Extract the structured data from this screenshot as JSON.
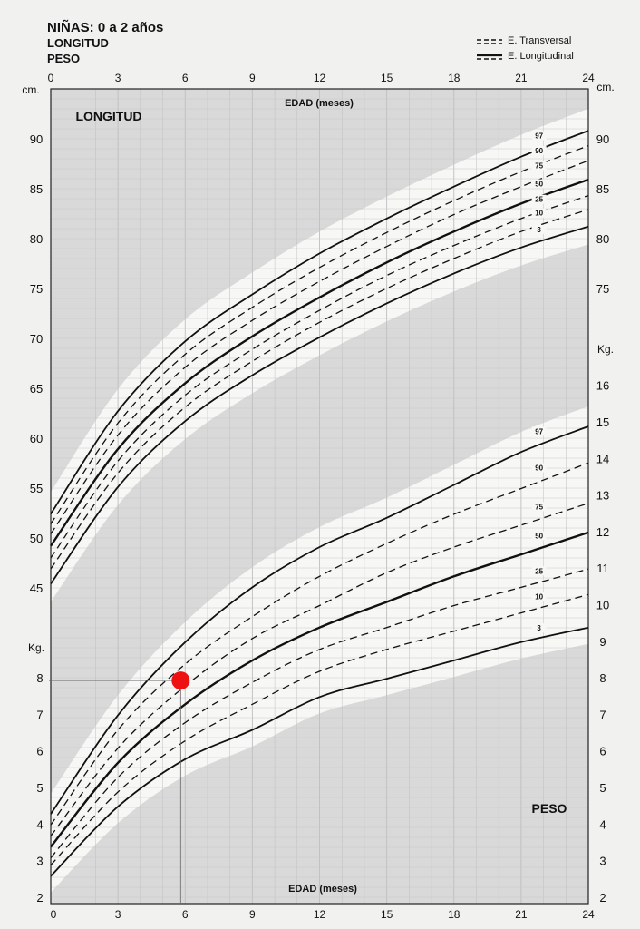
{
  "header": {
    "title": "NIÑAS: 0 a 2 años",
    "subtitle1": "LONGITUD",
    "subtitle2": "PESO"
  },
  "legend": {
    "transversal": "E. Transversal",
    "longitudinal": "E. Longitudinal"
  },
  "colors": {
    "background": "#f1f1ef",
    "plot_area": "#d9d9d9",
    "band": "#f7f7f5",
    "curve": "#111111",
    "marker": "#ee1111"
  },
  "chart_data": [
    {
      "type": "line",
      "panel": "LONGITUD",
      "title": "LONGITUD",
      "xlabel": "EDAD (meses)",
      "ylabel": "cm.",
      "x_ticks": [
        0,
        3,
        6,
        9,
        12,
        15,
        18,
        21,
        24
      ],
      "y_ticks_left": [
        45,
        50,
        55,
        60,
        65,
        70,
        75,
        80,
        85,
        90
      ],
      "y_ticks_right": [
        75,
        80,
        85,
        90
      ],
      "xlim": [
        0,
        24
      ],
      "ylim": [
        44,
        94
      ],
      "grid": true,
      "x": [
        0,
        3,
        6,
        9,
        12,
        15,
        18,
        21,
        24
      ],
      "series": [
        {
          "name": "97",
          "style": "solid",
          "values": [
            52.5,
            62.8,
            69.8,
            74.5,
            78.6,
            82.1,
            85.3,
            88.3,
            90.9
          ]
        },
        {
          "name": "90",
          "style": "dashed",
          "values": [
            51.5,
            61.6,
            68.5,
            73.2,
            77.2,
            80.7,
            83.9,
            86.8,
            89.4
          ]
        },
        {
          "name": "75",
          "style": "dashed",
          "values": [
            50.5,
            60.4,
            67.2,
            71.9,
            75.8,
            79.3,
            82.5,
            85.3,
            87.9
          ]
        },
        {
          "name": "50",
          "style": "solid",
          "values": [
            49.3,
            59.0,
            65.6,
            70.3,
            74.2,
            77.7,
            80.8,
            83.6,
            86.0
          ]
        },
        {
          "name": "25",
          "style": "dashed",
          "values": [
            48.1,
            57.8,
            64.4,
            69.0,
            72.9,
            76.4,
            79.4,
            82.1,
            84.4
          ]
        },
        {
          "name": "10",
          "style": "dashed",
          "values": [
            47.0,
            56.6,
            63.2,
            67.8,
            71.7,
            75.1,
            78.1,
            80.8,
            83.0
          ]
        },
        {
          "name": "3",
          "style": "solid",
          "values": [
            45.5,
            55.2,
            61.8,
            66.4,
            70.2,
            73.6,
            76.6,
            79.2,
            81.3
          ]
        }
      ]
    },
    {
      "type": "line",
      "panel": "PESO",
      "title": "PESO",
      "xlabel": "EDAD (meses)",
      "ylabel": "Kg.",
      "x_ticks": [
        0,
        3,
        6,
        9,
        12,
        15,
        18,
        21,
        24
      ],
      "y_ticks_left": [
        2,
        3,
        4,
        5,
        6,
        7,
        8
      ],
      "y_ticks_right": [
        2,
        3,
        4,
        5,
        6,
        7,
        8,
        9,
        10,
        11,
        12,
        13,
        14,
        15,
        16
      ],
      "xlim": [
        0,
        24
      ],
      "ylim": [
        2,
        16.6
      ],
      "grid": true,
      "x": [
        0,
        3,
        6,
        9,
        12,
        15,
        18,
        21,
        24
      ],
      "series": [
        {
          "name": "97",
          "style": "solid",
          "values": [
            4.3,
            7.0,
            9.0,
            10.5,
            11.6,
            12.4,
            13.3,
            14.2,
            14.9
          ]
        },
        {
          "name": "90",
          "style": "dashed",
          "values": [
            4.0,
            6.6,
            8.4,
            9.7,
            10.8,
            11.7,
            12.5,
            13.2,
            13.9
          ]
        },
        {
          "name": "75",
          "style": "dashed",
          "values": [
            3.7,
            6.1,
            7.8,
            9.1,
            10.0,
            10.9,
            11.6,
            12.2,
            12.8
          ]
        },
        {
          "name": "50",
          "style": "solid",
          "values": [
            3.4,
            5.7,
            7.3,
            8.5,
            9.4,
            10.1,
            10.8,
            11.4,
            12.0
          ]
        },
        {
          "name": "25",
          "style": "dashed",
          "values": [
            3.1,
            5.3,
            6.8,
            7.9,
            8.8,
            9.4,
            10.0,
            10.5,
            11.0
          ]
        },
        {
          "name": "10",
          "style": "dashed",
          "values": [
            2.9,
            4.9,
            6.3,
            7.3,
            8.2,
            8.8,
            9.3,
            9.8,
            10.3
          ]
        },
        {
          "name": "3",
          "style": "solid",
          "values": [
            2.6,
            4.5,
            5.8,
            6.6,
            7.5,
            8.0,
            8.5,
            9.0,
            9.4
          ]
        }
      ],
      "annotation": {
        "x": 5.8,
        "y": 7.95
      }
    }
  ]
}
